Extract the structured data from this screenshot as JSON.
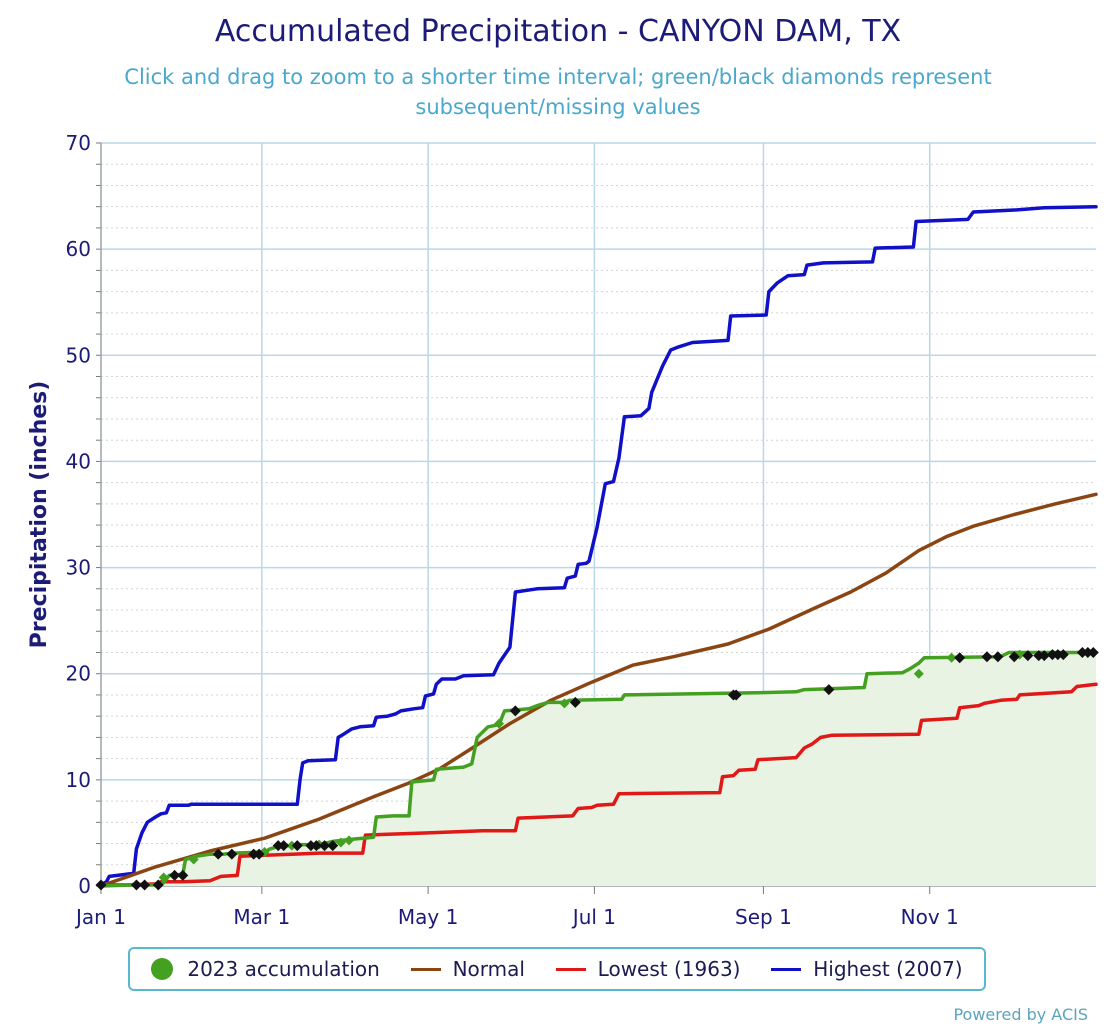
{
  "chart_data": {
    "type": "line",
    "title": "Accumulated Precipitation - CANYON DAM, TX",
    "subtitle": "Click and drag to zoom to a shorter time interval; green/black diamonds represent subsequent/missing values",
    "xlabel": "",
    "ylabel": "Precipitation (inches)",
    "xlim": [
      0,
      365
    ],
    "ylim": [
      0,
      70
    ],
    "yticks": [
      0,
      10,
      20,
      30,
      40,
      50,
      60,
      70
    ],
    "xticks": [
      {
        "day": 0,
        "label": "Jan 1"
      },
      {
        "day": 59,
        "label": "Mar 1"
      },
      {
        "day": 120,
        "label": "May 1"
      },
      {
        "day": 181,
        "label": "Jul 1"
      },
      {
        "day": 243,
        "label": "Sep 1"
      },
      {
        "day": 304,
        "label": "Nov 1"
      }
    ],
    "series": [
      {
        "name": "2023 accumulation",
        "color": "#44a020",
        "fill": "#e8f3e3",
        "points": [
          [
            0,
            0
          ],
          [
            13,
            0.1
          ],
          [
            20,
            0.1
          ],
          [
            23,
            0.3
          ],
          [
            25,
            1.0
          ],
          [
            30,
            1.1
          ],
          [
            31,
            2.5
          ],
          [
            35,
            2.8
          ],
          [
            40,
            3.0
          ],
          [
            45,
            3.0
          ],
          [
            48,
            3.1
          ],
          [
            60,
            3.2
          ],
          [
            62,
            3.5
          ],
          [
            66,
            3.8
          ],
          [
            70,
            3.8
          ],
          [
            72,
            3.9
          ],
          [
            78,
            3.9
          ],
          [
            82,
            4.0
          ],
          [
            85,
            4.2
          ],
          [
            92,
            4.4
          ],
          [
            96,
            4.5
          ],
          [
            100,
            4.6
          ],
          [
            101,
            6.5
          ],
          [
            107,
            6.6
          ],
          [
            113,
            6.6
          ],
          [
            114,
            9.8
          ],
          [
            122,
            10.0
          ],
          [
            123,
            11.0
          ],
          [
            133,
            11.2
          ],
          [
            136,
            11.5
          ],
          [
            138,
            14.0
          ],
          [
            142,
            15.0
          ],
          [
            146,
            15.2
          ],
          [
            148,
            16.5
          ],
          [
            157,
            16.7
          ],
          [
            160,
            17.0
          ],
          [
            164,
            17.3
          ],
          [
            170,
            17.3
          ],
          [
            172,
            17.5
          ],
          [
            191,
            17.6
          ],
          [
            192,
            18.0
          ],
          [
            240,
            18.2
          ],
          [
            255,
            18.3
          ],
          [
            258,
            18.5
          ],
          [
            280,
            18.7
          ],
          [
            281,
            20.0
          ],
          [
            294,
            20.1
          ],
          [
            297,
            20.5
          ],
          [
            300,
            21.0
          ],
          [
            302,
            21.5
          ],
          [
            330,
            21.6
          ],
          [
            333,
            22.0
          ],
          [
            365,
            22.0
          ]
        ]
      },
      {
        "name": "Normal",
        "color": "#8b4513",
        "points": [
          [
            0,
            0
          ],
          [
            20,
            1.8
          ],
          [
            40,
            3.3
          ],
          [
            60,
            4.5
          ],
          [
            80,
            6.3
          ],
          [
            100,
            8.4
          ],
          [
            113,
            9.7
          ],
          [
            124,
            11.0
          ],
          [
            135,
            12.8
          ],
          [
            150,
            15.3
          ],
          [
            165,
            17.5
          ],
          [
            180,
            19.2
          ],
          [
            195,
            20.8
          ],
          [
            210,
            21.6
          ],
          [
            230,
            22.8
          ],
          [
            245,
            24.2
          ],
          [
            262,
            26.2
          ],
          [
            275,
            27.7
          ],
          [
            288,
            29.5
          ],
          [
            300,
            31.6
          ],
          [
            310,
            32.9
          ],
          [
            320,
            33.9
          ],
          [
            335,
            35.0
          ],
          [
            350,
            36.0
          ],
          [
            365,
            36.9
          ]
        ]
      },
      {
        "name": "Lowest (1963)",
        "color": "#e01818",
        "points": [
          [
            0,
            0.1
          ],
          [
            10,
            0.1
          ],
          [
            20,
            0.2
          ],
          [
            22,
            0.4
          ],
          [
            30,
            0.4
          ],
          [
            40,
            0.5
          ],
          [
            44,
            0.9
          ],
          [
            50,
            1.0
          ],
          [
            51,
            2.8
          ],
          [
            60,
            2.9
          ],
          [
            70,
            3.0
          ],
          [
            80,
            3.1
          ],
          [
            96,
            3.1
          ],
          [
            97,
            4.8
          ],
          [
            120,
            5.0
          ],
          [
            140,
            5.2
          ],
          [
            152,
            5.2
          ],
          [
            153,
            6.4
          ],
          [
            173,
            6.6
          ],
          [
            175,
            7.3
          ],
          [
            180,
            7.4
          ],
          [
            182,
            7.6
          ],
          [
            188,
            7.7
          ],
          [
            190,
            8.7
          ],
          [
            227,
            8.8
          ],
          [
            228,
            10.3
          ],
          [
            232,
            10.4
          ],
          [
            234,
            10.9
          ],
          [
            240,
            11.0
          ],
          [
            241,
            11.9
          ],
          [
            255,
            12.1
          ],
          [
            258,
            13.0
          ],
          [
            261,
            13.4
          ],
          [
            264,
            14.0
          ],
          [
            268,
            14.2
          ],
          [
            300,
            14.3
          ],
          [
            301,
            15.6
          ],
          [
            314,
            15.8
          ],
          [
            315,
            16.8
          ],
          [
            322,
            17.0
          ],
          [
            324,
            17.2
          ],
          [
            330,
            17.5
          ],
          [
            336,
            17.6
          ],
          [
            337,
            18.0
          ],
          [
            350,
            18.2
          ],
          [
            356,
            18.3
          ],
          [
            358,
            18.8
          ],
          [
            365,
            19.0
          ]
        ]
      },
      {
        "name": "Highest (2007)",
        "color": "#1010c8",
        "points": [
          [
            0,
            0.1
          ],
          [
            2,
            0.4
          ],
          [
            3,
            0.9
          ],
          [
            6,
            1.0
          ],
          [
            12,
            1.2
          ],
          [
            13,
            3.5
          ],
          [
            15,
            5.0
          ],
          [
            17,
            6.0
          ],
          [
            20,
            6.5
          ],
          [
            22,
            6.8
          ],
          [
            24,
            6.9
          ],
          [
            25,
            7.6
          ],
          [
            32,
            7.6
          ],
          [
            33,
            7.7
          ],
          [
            72,
            7.7
          ],
          [
            73,
            10.0
          ],
          [
            74,
            11.6
          ],
          [
            76,
            11.8
          ],
          [
            86,
            11.9
          ],
          [
            87,
            14.0
          ],
          [
            89,
            14.3
          ],
          [
            92,
            14.8
          ],
          [
            95,
            15.0
          ],
          [
            100,
            15.1
          ],
          [
            101,
            15.9
          ],
          [
            105,
            16.0
          ],
          [
            108,
            16.2
          ],
          [
            110,
            16.5
          ],
          [
            115,
            16.7
          ],
          [
            118,
            16.8
          ],
          [
            119,
            17.9
          ],
          [
            122,
            18.1
          ],
          [
            123,
            19.0
          ],
          [
            125,
            19.5
          ],
          [
            130,
            19.5
          ],
          [
            133,
            19.8
          ],
          [
            144,
            19.9
          ],
          [
            146,
            21.0
          ],
          [
            150,
            22.5
          ],
          [
            152,
            27.7
          ],
          [
            160,
            28.0
          ],
          [
            170,
            28.1
          ],
          [
            171,
            29.0
          ],
          [
            174,
            29.2
          ],
          [
            175,
            30.3
          ],
          [
            178,
            30.4
          ],
          [
            179,
            30.6
          ],
          [
            182,
            33.8
          ],
          [
            185,
            37.9
          ],
          [
            188,
            38.1
          ],
          [
            190,
            40.3
          ],
          [
            192,
            44.2
          ],
          [
            198,
            44.3
          ],
          [
            201,
            45.0
          ],
          [
            202,
            46.5
          ],
          [
            206,
            49.0
          ],
          [
            209,
            50.5
          ],
          [
            212,
            50.8
          ],
          [
            217,
            51.2
          ],
          [
            230,
            51.4
          ],
          [
            231,
            53.7
          ],
          [
            244,
            53.8
          ],
          [
            245,
            56.0
          ],
          [
            248,
            56.8
          ],
          [
            252,
            57.5
          ],
          [
            258,
            57.6
          ],
          [
            259,
            58.5
          ],
          [
            265,
            58.7
          ],
          [
            283,
            58.8
          ],
          [
            284,
            60.1
          ],
          [
            298,
            60.2
          ],
          [
            299,
            62.6
          ],
          [
            318,
            62.8
          ],
          [
            320,
            63.5
          ],
          [
            336,
            63.7
          ],
          [
            346,
            63.9
          ],
          [
            365,
            64.0
          ]
        ]
      }
    ],
    "markers": {
      "black": [
        [
          0,
          0.1
        ],
        [
          13,
          0.1
        ],
        [
          16,
          0.1
        ],
        [
          21,
          0.1
        ],
        [
          27,
          1.0
        ],
        [
          30,
          1.0
        ],
        [
          43,
          3.0
        ],
        [
          48,
          3.0
        ],
        [
          56,
          3.0
        ],
        [
          58,
          3.0
        ],
        [
          65,
          3.8
        ],
        [
          67,
          3.8
        ],
        [
          72,
          3.8
        ],
        [
          77,
          3.8
        ],
        [
          79,
          3.8
        ],
        [
          82,
          3.8
        ],
        [
          85,
          3.8
        ],
        [
          152,
          16.5
        ],
        [
          174,
          17.3
        ],
        [
          232,
          18.0
        ],
        [
          233,
          18.0
        ],
        [
          267,
          18.5
        ],
        [
          315,
          21.5
        ],
        [
          325,
          21.6
        ],
        [
          329,
          21.6
        ],
        [
          335,
          21.6
        ],
        [
          340,
          21.7
        ],
        [
          344,
          21.7
        ],
        [
          346,
          21.7
        ],
        [
          349,
          21.8
        ],
        [
          351,
          21.8
        ],
        [
          353,
          21.8
        ],
        [
          360,
          22.0
        ],
        [
          362,
          22.0
        ],
        [
          364,
          22.0
        ]
      ],
      "green": [
        [
          23,
          0.8
        ],
        [
          27,
          1.0
        ],
        [
          34,
          2.5
        ],
        [
          60,
          3.2
        ],
        [
          70,
          3.8
        ],
        [
          80,
          3.9
        ],
        [
          88,
          4.1
        ],
        [
          91,
          4.3
        ],
        [
          146,
          15.3
        ],
        [
          170,
          17.2
        ],
        [
          300,
          20.0
        ],
        [
          312,
          21.5
        ],
        [
          337,
          21.8
        ]
      ]
    }
  },
  "legend": {
    "items": [
      {
        "label": "2023 accumulation",
        "color": "#44a020",
        "kind": "dot"
      },
      {
        "label": "Normal",
        "color": "#8b4513",
        "kind": "line"
      },
      {
        "label": "Lowest (1963)",
        "color": "#e01818",
        "kind": "line"
      },
      {
        "label": "Highest (2007)",
        "color": "#1010c8",
        "kind": "line"
      }
    ]
  },
  "credits": "Powered by ACIS"
}
